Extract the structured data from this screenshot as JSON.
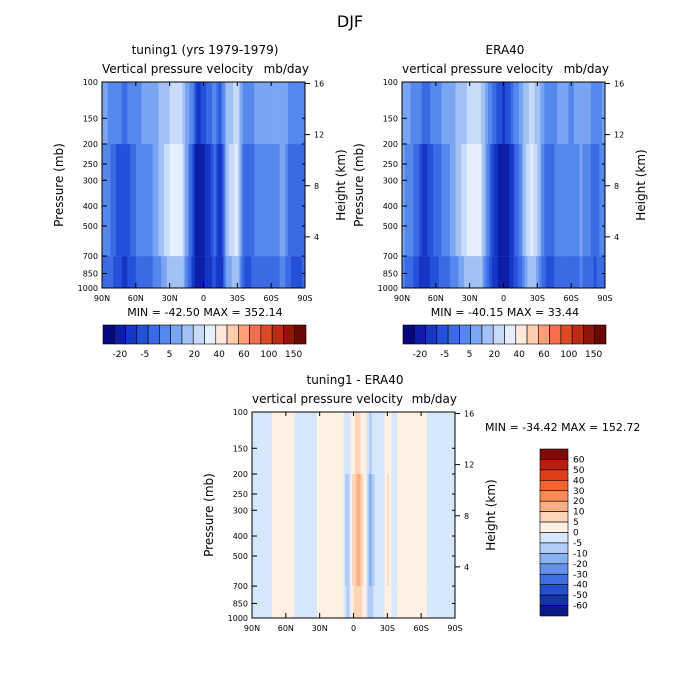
{
  "page_title": "DJF",
  "chart_data": [
    {
      "type": "heatmap",
      "title": "tuning1 (yrs 1979-1979)",
      "subtitle_left": "Vertical pressure velocity",
      "subtitle_right": "mb/day",
      "ylabel": "Pressure (mb)",
      "ylabel_right": "Height (km)",
      "x_ticks": [
        "90N",
        "60N",
        "30N",
        "0",
        "30S",
        "60S",
        "90S"
      ],
      "y_ticks": [
        "100",
        "150",
        "200",
        "250",
        "300",
        "400",
        "500",
        "700",
        "850",
        "1000"
      ],
      "y_ticks_right": [
        "16",
        "12",
        "8",
        "4"
      ],
      "ylim": [
        100,
        1000
      ],
      "y_scale": "log",
      "min_max_text": "MIN = -42.50   MAX = 352.14",
      "colorbar": {
        "orientation": "horizontal",
        "labels": [
          "-20",
          "-5",
          "5",
          "20",
          "40",
          "60",
          "100",
          "150"
        ],
        "colors": [
          "#08087e",
          "#0c1ea6",
          "#1536c6",
          "#2451da",
          "#3a6ae4",
          "#5588ec",
          "#7aa5f2",
          "#a2c2f6",
          "#c8dbf9",
          "#e6efff",
          "#ffe9dc",
          "#ffcdb0",
          "#ff9f78",
          "#f5704a",
          "#de4a26",
          "#bc2b12",
          "#8f1506",
          "#6a0904"
        ]
      },
      "profile": [
        {
          "lat": 90,
          "v": -5
        },
        {
          "lat": 80,
          "v": -12
        },
        {
          "lat": 70,
          "v": -20
        },
        {
          "lat": 60,
          "v": -10
        },
        {
          "lat": 50,
          "v": -8
        },
        {
          "lat": 40,
          "v": 0
        },
        {
          "lat": 30,
          "v": 10
        },
        {
          "lat": 20,
          "v": 14
        },
        {
          "lat": 15,
          "v": -3
        },
        {
          "lat": 10,
          "v": -15
        },
        {
          "lat": 5,
          "v": -40
        },
        {
          "lat": 0,
          "v": -32
        },
        {
          "lat": -5,
          "v": -22
        },
        {
          "lat": -10,
          "v": -12
        },
        {
          "lat": -15,
          "v": -30
        },
        {
          "lat": -20,
          "v": 2
        },
        {
          "lat": -25,
          "v": 8
        },
        {
          "lat": -30,
          "v": 12
        },
        {
          "lat": -35,
          "v": -10
        },
        {
          "lat": -40,
          "v": -14
        },
        {
          "lat": -50,
          "v": -6
        },
        {
          "lat": -60,
          "v": -9
        },
        {
          "lat": -70,
          "v": -3
        },
        {
          "lat": -80,
          "v": -15
        },
        {
          "lat": -90,
          "v": -10
        }
      ]
    },
    {
      "type": "heatmap",
      "title": "ERA40",
      "subtitle_left": "vertical pressure velocity",
      "subtitle_right": "mb/day",
      "ylabel": "Pressure (mb)",
      "ylabel_right": "Height (km)",
      "x_ticks": [
        "90N",
        "60N",
        "30N",
        "0",
        "30S",
        "60S",
        "90S"
      ],
      "y_ticks": [
        "100",
        "150",
        "200",
        "250",
        "300",
        "400",
        "500",
        "700",
        "850",
        "1000"
      ],
      "y_ticks_right": [
        "16",
        "12",
        "8",
        "4"
      ],
      "ylim": [
        100,
        1000
      ],
      "y_scale": "log",
      "min_max_text": "MIN = -40.15   MAX =  33.44",
      "colorbar": {
        "orientation": "horizontal",
        "labels": [
          "-20",
          "-5",
          "5",
          "20",
          "40",
          "60",
          "100",
          "150"
        ],
        "colors": [
          "#08087e",
          "#0c1ea6",
          "#1536c6",
          "#2451da",
          "#3a6ae4",
          "#5588ec",
          "#7aa5f2",
          "#a2c2f6",
          "#c8dbf9",
          "#e6efff",
          "#ffe9dc",
          "#ffcdb0",
          "#ff9f78",
          "#f5704a",
          "#de4a26",
          "#bc2b12",
          "#8f1506",
          "#6a0904"
        ]
      },
      "profile": [
        {
          "lat": 90,
          "v": -4
        },
        {
          "lat": 80,
          "v": -10
        },
        {
          "lat": 70,
          "v": -22
        },
        {
          "lat": 60,
          "v": -12
        },
        {
          "lat": 50,
          "v": -7
        },
        {
          "lat": 40,
          "v": 2
        },
        {
          "lat": 30,
          "v": 12
        },
        {
          "lat": 20,
          "v": 10
        },
        {
          "lat": 15,
          "v": -4
        },
        {
          "lat": 10,
          "v": -18
        },
        {
          "lat": 5,
          "v": -30
        },
        {
          "lat": 0,
          "v": -40
        },
        {
          "lat": -5,
          "v": -30
        },
        {
          "lat": -10,
          "v": -14
        },
        {
          "lat": -15,
          "v": -8
        },
        {
          "lat": -20,
          "v": 5
        },
        {
          "lat": -25,
          "v": 12
        },
        {
          "lat": -30,
          "v": 6
        },
        {
          "lat": -35,
          "v": -8
        },
        {
          "lat": -40,
          "v": -14
        },
        {
          "lat": -50,
          "v": -7
        },
        {
          "lat": -60,
          "v": -10
        },
        {
          "lat": -70,
          "v": -4
        },
        {
          "lat": -80,
          "v": -12
        },
        {
          "lat": -90,
          "v": -8
        }
      ]
    },
    {
      "type": "heatmap",
      "title": "tuning1 - ERA40",
      "subtitle_left": "vertical pressure velocity",
      "subtitle_right": "mb/day",
      "ylabel": "Pressure (mb)",
      "ylabel_right": "Height (km)",
      "x_ticks": [
        "90N",
        "60N",
        "30N",
        "0",
        "30S",
        "60S",
        "90S"
      ],
      "y_ticks": [
        "100",
        "150",
        "200",
        "250",
        "300",
        "400",
        "500",
        "700",
        "850",
        "1000"
      ],
      "y_ticks_right": [
        "16",
        "12",
        "8",
        "4"
      ],
      "ylim": [
        100,
        1000
      ],
      "y_scale": "log",
      "min_max_text": "MIN = -34.42   MAX = 152.72",
      "colorbar": {
        "orientation": "vertical",
        "labels": [
          "60",
          "50",
          "40",
          "30",
          "20",
          "10",
          "5",
          "0",
          "-5",
          "-10",
          "-20",
          "-30",
          "-40",
          "-50",
          "-60"
        ],
        "colors": [
          "#800a04",
          "#b81e0c",
          "#de3e18",
          "#f4632e",
          "#fb8a55",
          "#fdae82",
          "#fed4b8",
          "#fff0e4",
          "#d6e6fb",
          "#b1ccf6",
          "#8bb0ef",
          "#6391e7",
          "#3f70de",
          "#2450cc",
          "#1236aa",
          "#0a1a86"
        ]
      },
      "profile": [
        {
          "lat": 90,
          "v": -2
        },
        {
          "lat": 80,
          "v": -2
        },
        {
          "lat": 70,
          "v": 1
        },
        {
          "lat": 60,
          "v": 2
        },
        {
          "lat": 50,
          "v": -1
        },
        {
          "lat": 40,
          "v": -2
        },
        {
          "lat": 30,
          "v": 1
        },
        {
          "lat": 20,
          "v": 4
        },
        {
          "lat": 15,
          "v": 1
        },
        {
          "lat": 10,
          "v": 3
        },
        {
          "lat": 5,
          "v": -10
        },
        {
          "lat": 0,
          "v": 8
        },
        {
          "lat": -5,
          "v": 12
        },
        {
          "lat": -10,
          "v": 2
        },
        {
          "lat": -15,
          "v": -12
        },
        {
          "lat": -20,
          "v": -2
        },
        {
          "lat": -25,
          "v": -4
        },
        {
          "lat": -30,
          "v": 6
        },
        {
          "lat": -35,
          "v": -2
        },
        {
          "lat": -40,
          "v": 1
        },
        {
          "lat": -50,
          "v": 1
        },
        {
          "lat": -60,
          "v": 1
        },
        {
          "lat": -70,
          "v": -1
        },
        {
          "lat": -80,
          "v": -3
        },
        {
          "lat": -90,
          "v": -2
        }
      ]
    }
  ]
}
